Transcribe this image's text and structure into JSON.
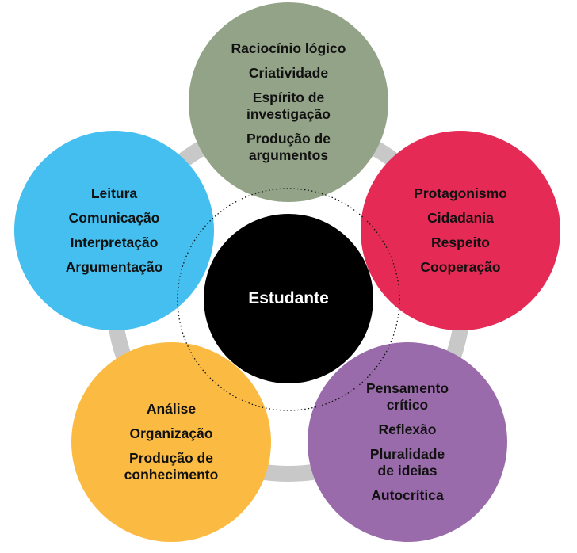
{
  "center": {
    "label": "Estudante",
    "color": "#000000"
  },
  "nodes": [
    {
      "id": "top",
      "color": "#93a387",
      "items": [
        "Raciocínio lógico",
        "Criatividade",
        "Espírito de\ninvestigação",
        "Produção de\nargumentos"
      ]
    },
    {
      "id": "right",
      "color": "#e52b55",
      "items": [
        "Protagonismo",
        "Cidadania",
        "Respeito",
        "Cooperação"
      ]
    },
    {
      "id": "bottom-right",
      "color": "#9a6bab",
      "items": [
        "Pensamento\ncrítico",
        "Reflexão",
        "Pluralidade\nde ideias",
        "Autocrítica"
      ]
    },
    {
      "id": "bottom-left",
      "color": "#fbbb43",
      "items": [
        "Análise",
        "Organização",
        "Produção de\nconhecimento"
      ]
    },
    {
      "id": "left",
      "color": "#44bfef",
      "items": [
        "Leitura",
        "Comunicação",
        "Interpretação",
        "Argumentação"
      ]
    }
  ],
  "ring_color": "#c8c8c8"
}
